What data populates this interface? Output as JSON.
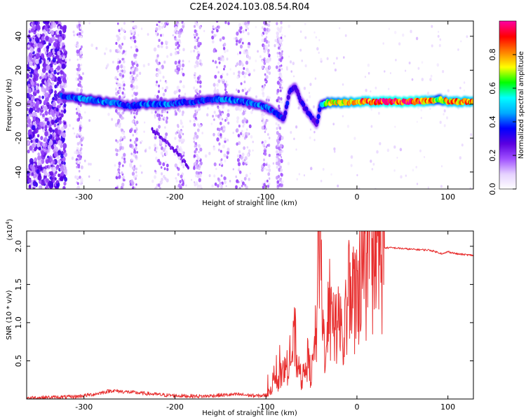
{
  "title": "C2E4.2024.103.08.54.R04",
  "chart_data": [
    {
      "type": "heatmap",
      "xlabel": "Height of straight line (km)",
      "ylabel": "Frequency (Hz)",
      "xlim": [
        -363,
        128
      ],
      "ylim": [
        -50,
        49
      ],
      "xticks": [
        -300,
        -200,
        -100,
        0,
        100
      ],
      "yticks": [
        -40,
        -20,
        0,
        20,
        40
      ],
      "colorbar": {
        "label": "Normalized spectral amplitude",
        "range": [
          0,
          1
        ],
        "ticks": [
          0.0,
          0.2,
          0.4,
          0.6,
          0.8
        ],
        "colors": [
          "#ffffff",
          "#e6d2ff",
          "#a050ff",
          "#5a00e0",
          "#0000ff",
          "#00aaff",
          "#00ffff",
          "#00ff00",
          "#ffff00",
          "#ff8000",
          "#ff0000",
          "#ff00a0"
        ]
      },
      "main_trace": {
        "x": [
          -325,
          -300,
          -270,
          -250,
          -230,
          -210,
          -190,
          -170,
          -150,
          -130,
          -110,
          -100,
          -90,
          -80,
          -74,
          -68,
          -60,
          -50,
          -44,
          -40,
          -30,
          -20,
          0,
          30,
          60,
          80,
          90,
          100,
          128
        ],
        "y": [
          5,
          3,
          1,
          -1,
          0,
          0,
          1,
          2,
          3,
          2,
          0,
          -2,
          -5,
          -9,
          8,
          10,
          0,
          -8,
          -12,
          0,
          1,
          1,
          1.5,
          1.5,
          1.5,
          2,
          3,
          1.5,
          1.5
        ],
        "amplitude": [
          0.4,
          0.5,
          0.45,
          0.4,
          0.45,
          0.45,
          0.4,
          0.4,
          0.45,
          0.45,
          0.45,
          0.45,
          0.4,
          0.4,
          0.35,
          0.35,
          0.35,
          0.35,
          0.3,
          0.5,
          0.8,
          0.8,
          0.9,
          1.0,
          1.0,
          0.9,
          0.7,
          0.9,
          0.9
        ]
      },
      "secondary_trace": {
        "x": [
          -225,
          -210,
          -195,
          -185
        ],
        "y": [
          -15,
          -22,
          -30,
          -37
        ],
        "amplitude": [
          0.2,
          0.2,
          0.2,
          0.2
        ]
      }
    },
    {
      "type": "line",
      "xlabel": "Height of straight line (km)",
      "ylabel": "SNR (10 * v/v)",
      "y_multiplier": "(x10",
      "y_multiplier_exp": "4",
      "y_multiplier_close": ")",
      "xlim": [
        -363,
        128
      ],
      "ylim": [
        0,
        22000
      ],
      "xticks": [
        -300,
        -200,
        -100,
        0,
        100
      ],
      "yticks": [
        0.5,
        1.0,
        1.5,
        2.0
      ],
      "color": "#e83030",
      "series": {
        "x": [
          -363,
          -340,
          -310,
          -290,
          -270,
          -260,
          -250,
          -230,
          -210,
          -190,
          -170,
          -150,
          -130,
          -110,
          -100,
          -90,
          -80,
          -72,
          -68,
          -65,
          -62,
          -58,
          -55,
          -50,
          -45,
          -40,
          -38,
          -35,
          -30,
          -25,
          -20,
          -15,
          -12,
          -10,
          -5,
          0,
          5,
          10,
          15,
          20,
          25,
          30,
          40,
          60,
          80,
          95,
          100,
          110,
          128
        ],
        "y": [
          150,
          200,
          300,
          600,
          1100,
          1000,
          900,
          700,
          500,
          400,
          350,
          500,
          600,
          400,
          500,
          2000,
          3500,
          5500,
          8000,
          4000,
          2500,
          3000,
          5500,
          3000,
          8500,
          21500,
          9000,
          7000,
          10500,
          8500,
          12500,
          6000,
          10500,
          15000,
          13000,
          15500,
          16000,
          17500,
          18500,
          19500,
          19700,
          19800,
          19800,
          19600,
          19500,
          19000,
          19300,
          19000,
          18800
        ]
      }
    }
  ]
}
